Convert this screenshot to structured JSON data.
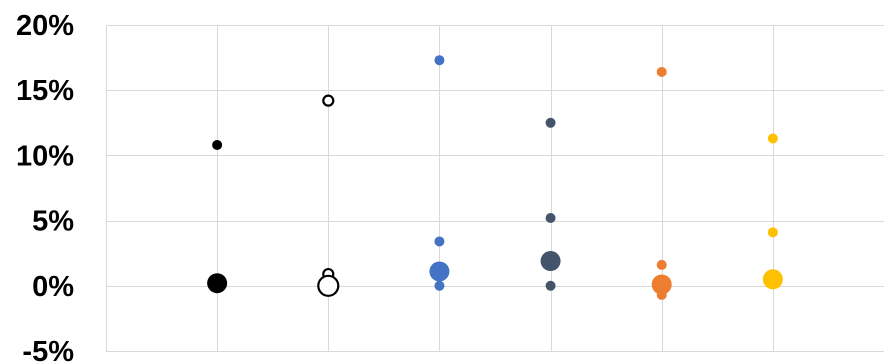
{
  "chart_data": {
    "type": "scatter",
    "title": "",
    "xlabel": "",
    "ylabel": "",
    "x_categories": 6,
    "ylim": [
      -0.05,
      0.2
    ],
    "yticks": [
      -0.05,
      0,
      0.05,
      0.1,
      0.15,
      0.2
    ],
    "ytick_labels": [
      "-5%",
      "0%",
      "5%",
      "10%",
      "15%",
      "20%"
    ],
    "grid": true,
    "legend": "none",
    "series": [
      {
        "color": "#000000",
        "hollow": false,
        "points": [
          {
            "x": 1,
            "y": 0.108,
            "size": "small"
          },
          {
            "x": 1,
            "y": 0.002,
            "size": "large"
          }
        ]
      },
      {
        "color": "#000000",
        "hollow": true,
        "points": [
          {
            "x": 2,
            "y": 0.142,
            "size": "small"
          },
          {
            "x": 2,
            "y": 0.009,
            "size": "small"
          },
          {
            "x": 2,
            "y": 0.0,
            "size": "large"
          }
        ]
      },
      {
        "color": "#4472C4",
        "hollow": false,
        "points": [
          {
            "x": 3,
            "y": 0.173,
            "size": "small"
          },
          {
            "x": 3,
            "y": 0.034,
            "size": "small"
          },
          {
            "x": 3,
            "y": 0.011,
            "size": "large"
          },
          {
            "x": 3,
            "y": 0.0,
            "size": "small"
          }
        ]
      },
      {
        "color": "#44546A",
        "hollow": false,
        "points": [
          {
            "x": 4,
            "y": 0.125,
            "size": "small"
          },
          {
            "x": 4,
            "y": 0.052,
            "size": "small"
          },
          {
            "x": 4,
            "y": 0.019,
            "size": "large"
          },
          {
            "x": 4,
            "y": 0.0,
            "size": "small"
          }
        ]
      },
      {
        "color": "#ED7D31",
        "hollow": false,
        "points": [
          {
            "x": 5,
            "y": 0.164,
            "size": "small"
          },
          {
            "x": 5,
            "y": 0.016,
            "size": "small"
          },
          {
            "x": 5,
            "y": 0.001,
            "size": "large"
          },
          {
            "x": 5,
            "y": -0.007,
            "size": "small"
          }
        ]
      },
      {
        "color": "#FFC000",
        "hollow": false,
        "points": [
          {
            "x": 6,
            "y": 0.113,
            "size": "small"
          },
          {
            "x": 6,
            "y": 0.041,
            "size": "small"
          },
          {
            "x": 6,
            "y": 0.005,
            "size": "large"
          }
        ]
      }
    ]
  }
}
